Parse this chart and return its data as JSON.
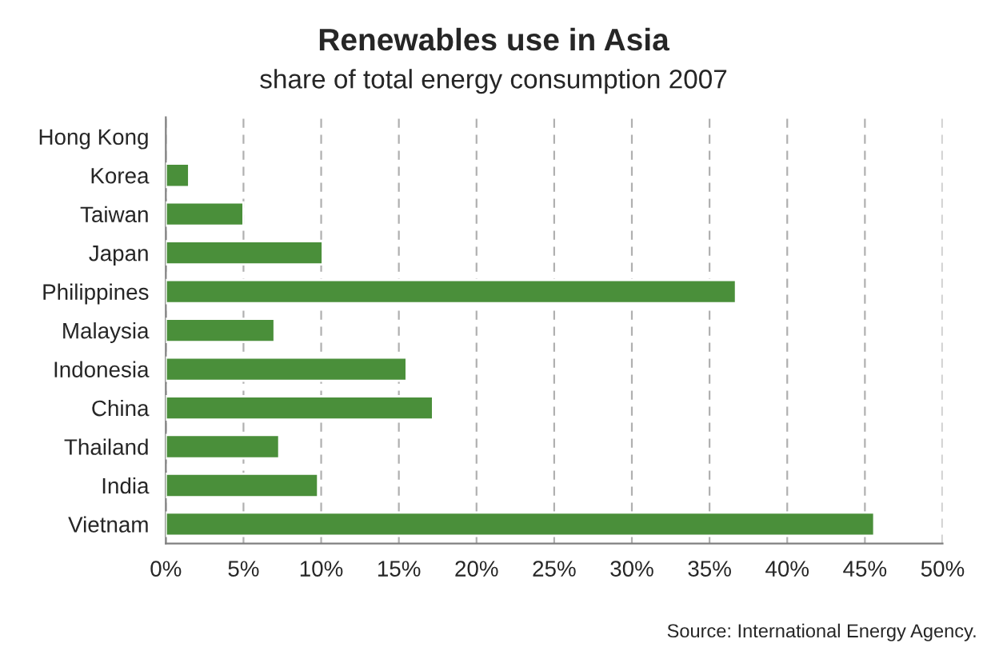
{
  "chart_data": {
    "type": "bar",
    "orientation": "horizontal",
    "title": "Renewables use in Asia",
    "subtitle": "share of total energy consumption 2007",
    "categories": [
      "Hong Kong",
      "Korea",
      "Taiwan",
      "Japan",
      "Philippines",
      "Malaysia",
      "Indonesia",
      "China",
      "Thailand",
      "India",
      "Vietnam"
    ],
    "values": [
      null,
      1.5,
      5.0,
      10.1,
      36.7,
      7.0,
      15.5,
      17.2,
      7.3,
      9.8,
      45.6
    ],
    "color": "#4a8f3a",
    "xlim": [
      0,
      50
    ],
    "xticks": [
      {
        "value": 0,
        "label": "0%"
      },
      {
        "value": 5,
        "label": "5%"
      },
      {
        "value": 10,
        "label": "10%"
      },
      {
        "value": 15,
        "label": "15%"
      },
      {
        "value": 20,
        "label": "20%"
      },
      {
        "value": 25,
        "label": "25%"
      },
      {
        "value": 30,
        "label": "30%"
      },
      {
        "value": 35,
        "label": "35%"
      },
      {
        "value": 40,
        "label": "40%"
      },
      {
        "value": 45,
        "label": "45%"
      },
      {
        "value": 50,
        "label": "50%"
      }
    ],
    "grid": "x",
    "annotations": [
      "Source: International Energy Agency."
    ]
  }
}
